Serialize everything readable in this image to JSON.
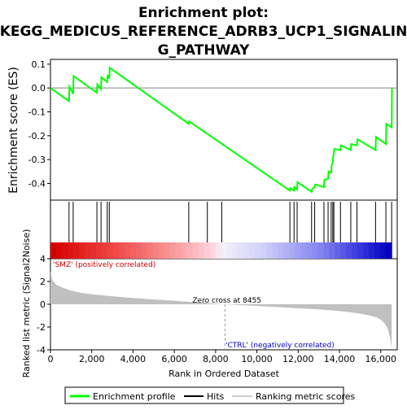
{
  "chart_data": {
    "type": "line",
    "title_lines": [
      "Enrichment plot:",
      "KEGG_MEDICUS_REFERENCE_ADRB3_UCP1_SIGNALIN",
      "G_PATHWAY"
    ],
    "top_panel": {
      "ylabel": "Enrichment score (ES)",
      "ylim": [
        -0.47,
        0.12
      ],
      "yticks": [
        -0.4,
        -0.3,
        -0.2,
        -0.1,
        0.0,
        0.1
      ],
      "ytick_labels": [
        "-0.4",
        "-0.3",
        "-0.2",
        "-0.1",
        "0.0",
        "0.1"
      ],
      "series": [
        {
          "name": "Enrichment profile",
          "color": "#00ff00",
          "x": [
            0,
            900,
            920,
            1100,
            1120,
            2250,
            2270,
            2450,
            2470,
            2750,
            2770,
            2850,
            2870,
            6700,
            6720,
            11600,
            11620,
            11800,
            11820,
            11950,
            11970,
            12650,
            12670,
            12800,
            12820,
            13250,
            13270,
            13450,
            13470,
            13600,
            13620,
            13680,
            13700,
            13730,
            13750,
            14050,
            14070,
            14550,
            14570,
            14850,
            14870,
            15750,
            15770,
            16250,
            16270,
            16530,
            16545
          ],
          "y": [
            0.0,
            -0.055,
            0.005,
            -0.025,
            0.05,
            -0.02,
            0.015,
            -0.005,
            0.045,
            0.025,
            0.055,
            0.04,
            0.085,
            -0.15,
            -0.14,
            -0.43,
            -0.42,
            -0.43,
            -0.415,
            -0.425,
            -0.395,
            -0.435,
            -0.425,
            -0.415,
            -0.405,
            -0.415,
            -0.385,
            -0.38,
            -0.35,
            -0.355,
            -0.325,
            -0.31,
            -0.285,
            -0.27,
            -0.255,
            -0.26,
            -0.24,
            -0.26,
            -0.235,
            -0.24,
            -0.215,
            -0.26,
            -0.205,
            -0.235,
            -0.15,
            -0.165,
            0.0
          ]
        }
      ]
    },
    "hits": {
      "name": "Hits",
      "x": [
        900,
        1100,
        2250,
        2450,
        2750,
        2850,
        6700,
        7600,
        8300,
        11600,
        11800,
        11950,
        12650,
        12800,
        13250,
        13450,
        13600,
        13680,
        13730,
        14050,
        14550,
        14850,
        15750,
        16250,
        16530
      ]
    },
    "bottom_panel": {
      "ylabel": "Ranked list metric (Signal2Noise)",
      "ylim": [
        -4,
        4
      ],
      "yticks": [
        -4,
        -2,
        0,
        2,
        4
      ],
      "ytick_labels": [
        "-4",
        "-2",
        "0",
        "2",
        "4"
      ],
      "xlabel": "Rank in Ordered Dataset",
      "xlim": [
        0,
        16800
      ],
      "xticks": [
        0,
        2000,
        4000,
        6000,
        8000,
        10000,
        12000,
        14000,
        16000
      ],
      "xtick_labels": [
        "0",
        "2,000",
        "4,000",
        "6,000",
        "8,000",
        "10,000",
        "12,000",
        "14,000",
        "16,000"
      ],
      "metric_x": [
        0,
        100,
        300,
        600,
        1000,
        1500,
        2000,
        3000,
        4000,
        5000,
        6000,
        7000,
        8000,
        8455,
        9000,
        10000,
        11000,
        12000,
        13000,
        14000,
        14500,
        15000,
        15500,
        15800,
        16000,
        16200,
        16350,
        16450,
        16530
      ],
      "metric_y": [
        2.9,
        2.1,
        1.7,
        1.45,
        1.2,
        1.0,
        0.88,
        0.7,
        0.55,
        0.42,
        0.3,
        0.18,
        0.06,
        0.0,
        -0.05,
        -0.15,
        -0.25,
        -0.35,
        -0.45,
        -0.6,
        -0.7,
        -0.82,
        -1.0,
        -1.15,
        -1.35,
        -1.7,
        -2.2,
        -2.9,
        -3.9
      ],
      "zero_cross_label": "Zero cross at 8455",
      "zero_cross_x": 8455,
      "pos_label": "'SMZ' (positively correlated)",
      "neg_label": "'CTRL' (negatively correlated)"
    },
    "legend": {
      "placement": "bottom",
      "entries": [
        {
          "label": "Enrichment profile",
          "color": "#00ff00"
        },
        {
          "label": "Hits",
          "color": "#000000"
        },
        {
          "label": "Ranking metric scores",
          "color": "#cccccc"
        }
      ]
    },
    "colors": {
      "profile": "#00ff00",
      "pos_label": "#cc0000",
      "neg_label": "#0000cc",
      "metric_fill": "#c0c0c0"
    }
  }
}
